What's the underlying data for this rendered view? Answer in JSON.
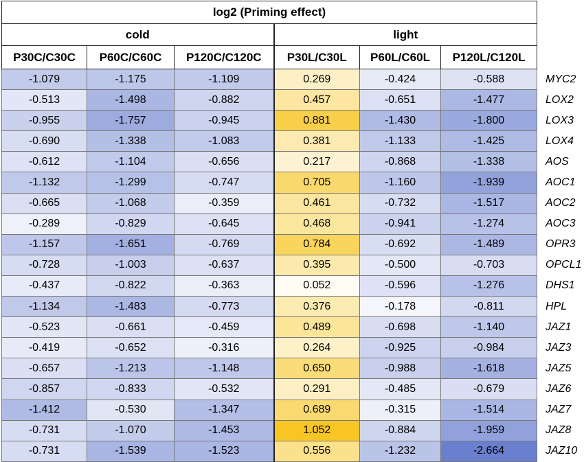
{
  "chart_data": {
    "type": "heatmap",
    "title": "log2 (Priming effect)",
    "groups": [
      {
        "label": "cold",
        "span": 3
      },
      {
        "label": "light",
        "span": 3
      }
    ],
    "columns": [
      "P30C/C30C",
      "P60C/C60C",
      "P120C/C120C",
      "P30L/C30L",
      "P60L/C60L",
      "P120L/C120L"
    ],
    "rows": [
      "MYC2",
      "LOX2",
      "LOX3",
      "LOX4",
      "AOS",
      "AOC1",
      "AOC2",
      "AOC3",
      "OPR3",
      "OPCL1",
      "DHS1",
      "HPL",
      "JAZ1",
      "JAZ3",
      "JAZ5",
      "JAZ6",
      "JAZ7",
      "JAZ8",
      "JAZ10"
    ],
    "values": [
      [
        "-1.079",
        "-1.175",
        "-1.109",
        "0.269",
        "-0.424",
        "-0.588"
      ],
      [
        "-0.513",
        "-1.498",
        "-0.882",
        "0.457",
        "-0.651",
        "-1.477"
      ],
      [
        "-0.955",
        "-1.757",
        "-0.945",
        "0.881",
        "-1.430",
        "-1.800"
      ],
      [
        "-0.690",
        "-1.338",
        "-1.083",
        "0.381",
        "-1.133",
        "-1.425"
      ],
      [
        "-0.612",
        "-1.104",
        "-0.656",
        "0.217",
        "-0.868",
        "-1.338"
      ],
      [
        "-1.132",
        "-1.299",
        "-0.747",
        "0.705",
        "-1.160",
        "-1.939"
      ],
      [
        "-0.665",
        "-1.068",
        "-0.359",
        "0.461",
        "-0.732",
        "-1.517"
      ],
      [
        "-0.289",
        "-0.829",
        "-0.645",
        "0.468",
        "-0.941",
        "-1.274"
      ],
      [
        "-1.157",
        "-1.651",
        "-0.769",
        "0.784",
        "-0.692",
        "-1.489"
      ],
      [
        "-0.728",
        "-1.003",
        "-0.637",
        "0.395",
        "-0.500",
        "-0.703"
      ],
      [
        "-0.437",
        "-0.822",
        "-0.363",
        "0.052",
        "-0.596",
        "-1.276"
      ],
      [
        "-1.134",
        "-1.483",
        "-0.773",
        "0.376",
        "-0.178",
        "-0.811"
      ],
      [
        "-0.523",
        "-0.661",
        "-0.459",
        "0.489",
        "-0.698",
        "-1.140"
      ],
      [
        "-0.419",
        "-0.652",
        "-0.316",
        "0.264",
        "-0.925",
        "-0.984"
      ],
      [
        "-0.657",
        "-1.213",
        "-1.148",
        "0.650",
        "-0.988",
        "-1.618"
      ],
      [
        "-0.857",
        "-0.833",
        "-0.532",
        "0.291",
        "-0.485",
        "-0.679"
      ],
      [
        "-1.412",
        "-0.530",
        "-1.347",
        "0.689",
        "-0.315",
        "-1.514"
      ],
      [
        "-0.731",
        "-1.070",
        "-1.453",
        "1.052",
        "-0.884",
        "-1.959"
      ],
      [
        "-0.731",
        "-1.539",
        "-1.523",
        "0.556",
        "-1.232",
        "-2.664"
      ]
    ],
    "color_scale": {
      "negative": "#6a7fce",
      "zero": "#ffffff",
      "positive": "#f7c624",
      "min": -2.664,
      "max": 1.052
    }
  }
}
